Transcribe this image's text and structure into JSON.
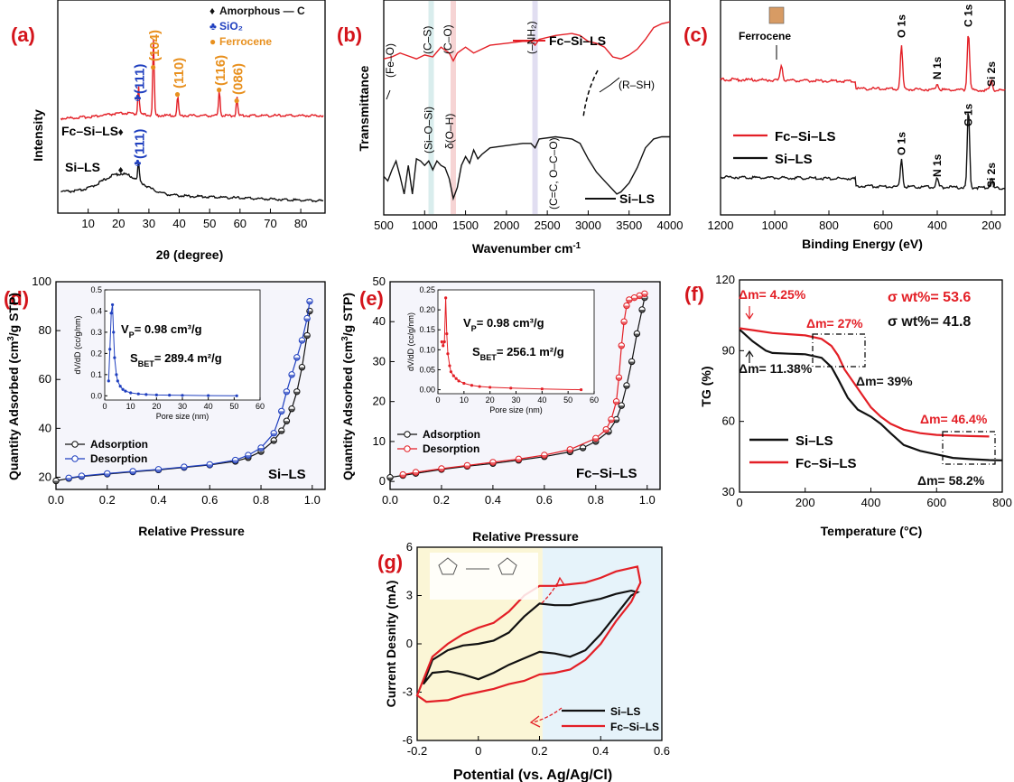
{
  "colors": {
    "red": "#e31f26",
    "black": "#111111",
    "blue": "#1f3fbf",
    "orange": "#e8901e",
    "label": "#d4141b",
    "cvYellow": "#fbf6d6",
    "cvBlue": "#e6f3fa"
  },
  "chart_data": [
    {
      "id": "a",
      "type": "line",
      "panel_label": "(a)",
      "xlabel": "2θ (degree)",
      "ylabel": "Intensity",
      "xlim": [
        0,
        88
      ],
      "xticks": [
        10,
        20,
        30,
        40,
        50,
        60,
        70,
        80
      ],
      "series": [
        {
          "name": "Fc–Si–LS",
          "color": "#e31f26",
          "peaks": [
            [
              26.6,
              0.9
            ],
            [
              31.5,
              2.3
            ],
            [
              39.5,
              0.6
            ],
            [
              53.2,
              0.8
            ],
            [
              59.0,
              0.6
            ]
          ]
        },
        {
          "name": "Si–LS",
          "color": "#111111",
          "broad_max": 21,
          "peaks": [
            [
              26.6,
              1.5
            ]
          ]
        }
      ],
      "series_labels": [
        "Fc–Si–LS",
        "Si–LS"
      ],
      "legend": [
        {
          "symbol": "♦",
          "text": "Amorphous — C",
          "color": "#111111"
        },
        {
          "symbol": "♣",
          "text": "SiO₂",
          "color": "#1f3fbf"
        },
        {
          "symbol": "●",
          "text": "Ferrocene",
          "color": "#e8901e"
        }
      ],
      "annotations": [
        {
          "text": "(111)",
          "x": 26.6,
          "color": "#1f3fbf",
          "series": "Fc–Si–LS"
        },
        {
          "text": "(104)",
          "x": 31.5,
          "color": "#e8901e"
        },
        {
          "text": "(110)",
          "x": 39.5,
          "color": "#e8901e"
        },
        {
          "text": "(116)",
          "x": 53.2,
          "color": "#e8901e"
        },
        {
          "text": "(086)",
          "x": 59.0,
          "color": "#e8901e"
        },
        {
          "text": "(111)",
          "x": 26.6,
          "color": "#1f3fbf",
          "series": "Si–LS"
        }
      ]
    },
    {
      "id": "b",
      "type": "line",
      "panel_label": "(b)",
      "xlabel": "Wavenumber cm⁻¹",
      "ylabel": "Transmittance",
      "xlim": [
        500,
        4000
      ],
      "xticks": [
        500,
        1000,
        1500,
        2000,
        2500,
        3000,
        3500,
        4000
      ],
      "series": [
        {
          "name": "Fc–Si–LS",
          "color": "#e31f26",
          "x": [
            500,
            600,
            700,
            800,
            900,
            1000,
            1100,
            1200,
            1300,
            1350,
            1400,
            1500,
            1600,
            1700,
            1800,
            2000,
            2200,
            2300,
            2350,
            2400,
            2600,
            2800,
            2900,
            3000,
            3100,
            3200,
            3300,
            3400,
            3500,
            3600,
            3700,
            3800,
            3900,
            4000
          ],
          "y": [
            60,
            62,
            66,
            63,
            60,
            64,
            62,
            72,
            66,
            58,
            66,
            72,
            66,
            70,
            74,
            76,
            78,
            78,
            74,
            80,
            84,
            86,
            84,
            78,
            76,
            72,
            62,
            60,
            64,
            70,
            80,
            92,
            96,
            98
          ]
        },
        {
          "name": "Si–LS",
          "color": "#111111",
          "x": [
            500,
            550,
            600,
            650,
            700,
            750,
            800,
            850,
            900,
            950,
            1000,
            1050,
            1100,
            1150,
            1200,
            1250,
            1300,
            1350,
            1400,
            1450,
            1500,
            1550,
            1600,
            1650,
            1700,
            1800,
            2000,
            2200,
            2300,
            2350,
            2400,
            2600,
            2800,
            2900,
            3000,
            3100,
            3200,
            3300,
            3350,
            3400,
            3500,
            3600,
            3700,
            3800,
            3900,
            4000
          ],
          "y": [
            30,
            26,
            36,
            44,
            30,
            14,
            40,
            14,
            46,
            44,
            40,
            44,
            36,
            44,
            40,
            38,
            28,
            10,
            20,
            40,
            48,
            42,
            54,
            46,
            50,
            56,
            58,
            60,
            60,
            56,
            64,
            66,
            64,
            60,
            46,
            34,
            26,
            18,
            14,
            16,
            24,
            38,
            56,
            64,
            66,
            66
          ]
        }
      ],
      "annotations": [
        "(Fe–O)",
        "(C–S)",
        "(C–O)",
        "(–NH₂)",
        "(Si–O–Si)",
        "δ(O–H)",
        "(C=C, O–C–O)",
        "(R–SH)"
      ]
    },
    {
      "id": "c",
      "type": "line",
      "panel_label": "(c)",
      "xlabel": "Binding Energy (eV)",
      "ylabel": "",
      "xlim": [
        1200,
        150
      ],
      "xticks": [
        1200,
        1000,
        800,
        600,
        400,
        200
      ],
      "series": [
        {
          "name": "Fc–Si–LS",
          "color": "#e31f26",
          "peaks": [
            [
              975,
              14
            ],
            [
              532,
              40
            ],
            [
              400,
              6
            ],
            [
              285,
              54
            ],
            [
              200,
              10
            ]
          ]
        },
        {
          "name": "Si–LS",
          "color": "#111111",
          "peaks": [
            [
              532,
              26
            ],
            [
              400,
              8
            ],
            [
              285,
              72
            ],
            [
              200,
              10
            ]
          ]
        }
      ],
      "annotations": [
        "Ferrocene",
        "O 1s",
        "N 1s",
        "C 1s",
        "Si 2s",
        "O 1s",
        "N 1s",
        "C 1s",
        "Si 2s"
      ]
    },
    {
      "id": "d",
      "type": "line",
      "panel_label": "(d)",
      "xlabel": "Relative Pressure",
      "ylabel": "Quantity Adsorbed (cm³/g STP)",
      "xlim": [
        0.0,
        1.05
      ],
      "ylim": [
        15,
        100
      ],
      "xticks": [
        0.0,
        0.2,
        0.4,
        0.6,
        0.8,
        1.0
      ],
      "yticks": [
        20,
        40,
        60,
        80,
        100
      ],
      "series": [
        {
          "name": "Adsorption",
          "color": "#111111",
          "x": [
            0.0,
            0.05,
            0.1,
            0.2,
            0.3,
            0.4,
            0.5,
            0.6,
            0.7,
            0.75,
            0.8,
            0.85,
            0.88,
            0.9,
            0.92,
            0.94,
            0.96,
            0.98,
            0.99
          ],
          "y": [
            18.5,
            19.5,
            20.3,
            21.3,
            22.2,
            23,
            24,
            25,
            26.5,
            28,
            30.5,
            35,
            39,
            43,
            48,
            55,
            65,
            78,
            88
          ]
        },
        {
          "name": "Desorption",
          "color": "#1f3fbf",
          "x": [
            0.99,
            0.98,
            0.96,
            0.94,
            0.92,
            0.9,
            0.88,
            0.85,
            0.8,
            0.75,
            0.7,
            0.6,
            0.5,
            0.4,
            0.3,
            0.2,
            0.1,
            0.05
          ],
          "y": [
            92,
            85,
            76,
            69,
            62,
            55,
            47,
            38,
            32,
            29,
            27,
            25.2,
            24.2,
            23.2,
            22.4,
            21.5,
            20.5,
            19.7
          ]
        }
      ],
      "legend": [
        "Adsorption",
        "Desorption"
      ],
      "sample_label": "Si–LS",
      "inset": {
        "xlabel": "Pore size (nm)",
        "ylabel": "dV/dD (cc/g/nm)",
        "xlim": [
          0,
          60
        ],
        "ylim": [
          -0.02,
          0.5
        ],
        "xticks": [
          0,
          10,
          20,
          30,
          40,
          50,
          60
        ],
        "yticks": [
          0.0,
          0.1,
          0.2,
          0.3,
          0.4,
          0.5
        ],
        "x": [
          1.5,
          2,
          2.5,
          3,
          3.4,
          3.8,
          4.5,
          5,
          6,
          7,
          8,
          10,
          13,
          16,
          20,
          25,
          30,
          40,
          51
        ],
        "y": [
          0.07,
          0.22,
          0.39,
          0.43,
          0.3,
          0.18,
          0.1,
          0.07,
          0.045,
          0.03,
          0.022,
          0.014,
          0.009,
          0.006,
          0.004,
          0.003,
          0.002,
          0.001,
          0.0
        ],
        "color": "#1f3fbf"
      },
      "texts": [
        "VP= 0.98 cm³/g",
        "SBET= 289.4 m²/g"
      ]
    },
    {
      "id": "e",
      "type": "line",
      "panel_label": "(e)",
      "xlabel": "Relative Pressure",
      "ylabel": "Quantity Adsorbed (cm³/g STP)",
      "xlim": [
        0.0,
        1.05
      ],
      "ylim": [
        -2,
        50
      ],
      "xticks": [
        0.0,
        0.2,
        0.4,
        0.6,
        0.8,
        1.0
      ],
      "yticks": [
        0,
        10,
        20,
        30,
        40,
        50
      ],
      "series": [
        {
          "name": "Adsorption",
          "color": "#111111",
          "x": [
            0.0,
            0.05,
            0.1,
            0.2,
            0.3,
            0.4,
            0.5,
            0.6,
            0.7,
            0.75,
            0.8,
            0.85,
            0.88,
            0.9,
            0.92,
            0.94,
            0.96,
            0.98,
            0.99
          ],
          "y": [
            1,
            1.5,
            2,
            3,
            3.8,
            4.5,
            5.3,
            6.2,
            7.4,
            8.4,
            10,
            12.5,
            15.5,
            19,
            24,
            30,
            37,
            43,
            46
          ]
        },
        {
          "name": "Desorption",
          "color": "#e31f26",
          "x": [
            0.99,
            0.97,
            0.95,
            0.93,
            0.92,
            0.91,
            0.9,
            0.89,
            0.88,
            0.86,
            0.84,
            0.8,
            0.7,
            0.6,
            0.5,
            0.4,
            0.3,
            0.2,
            0.1,
            0.05
          ],
          "y": [
            47,
            46.5,
            46,
            45.5,
            44,
            40,
            34,
            26,
            20,
            15.5,
            13,
            10.8,
            8,
            6.6,
            5.6,
            4.8,
            4,
            3.2,
            2.3,
            1.7
          ]
        }
      ],
      "legend": [
        "Adsorption",
        "Desorption"
      ],
      "sample_label": "Fc–Si–LS",
      "inset": {
        "xlabel": "Pore size (nm)",
        "ylabel": "dV/dD (cc/g/nm)",
        "xlim": [
          0,
          60
        ],
        "ylim": [
          -0.01,
          0.25
        ],
        "xticks": [
          0,
          10,
          20,
          30,
          40,
          50,
          60
        ],
        "yticks": [
          0.0,
          0.05,
          0.1,
          0.15,
          0.2,
          0.25
        ],
        "x": [
          1.5,
          2,
          2.5,
          3,
          3.4,
          3.8,
          4.5,
          5,
          6,
          7,
          8,
          10,
          13,
          16,
          20,
          28,
          40,
          55
        ],
        "y": [
          0.12,
          0.11,
          0.12,
          0.23,
          0.14,
          0.09,
          0.06,
          0.045,
          0.035,
          0.028,
          0.022,
          0.016,
          0.011,
          0.008,
          0.006,
          0.004,
          0.002,
          0.0
        ],
        "color": "#e31f26"
      },
      "texts": [
        "VP= 0.98 cm³/g",
        "SBET= 256.1 m²/g"
      ]
    },
    {
      "id": "f",
      "type": "line",
      "panel_label": "(f)",
      "xlabel": "Temperature (°C)",
      "ylabel": "TG (%)",
      "xlim": [
        0,
        800
      ],
      "ylim": [
        30,
        120
      ],
      "xticks": [
        0,
        200,
        400,
        600,
        800
      ],
      "yticks": [
        30,
        60,
        90,
        120
      ],
      "series": [
        {
          "name": "Si–LS",
          "color": "#111111",
          "x": [
            0,
            40,
            80,
            100,
            150,
            200,
            250,
            280,
            300,
            330,
            360,
            400,
            430,
            460,
            500,
            550,
            600,
            650,
            700,
            760,
            800
          ],
          "y": [
            99,
            94,
            90,
            89,
            88.7,
            88.5,
            87,
            83,
            78,
            70,
            65,
            62,
            59,
            55,
            50,
            47.5,
            46,
            44.5,
            44,
            43.6,
            43.5
          ]
        },
        {
          "name": "Fc–Si–LS",
          "color": "#e31f26",
          "x": [
            0,
            50,
            100,
            150,
            200,
            250,
            280,
            300,
            320,
            350,
            380,
            400,
            430,
            460,
            500,
            550,
            600,
            650,
            700,
            760
          ],
          "y": [
            99.5,
            98.5,
            97.5,
            97,
            96.5,
            95,
            92,
            88,
            82,
            76,
            70,
            66,
            62,
            59,
            56.5,
            55,
            54.3,
            54,
            53.8,
            53.6
          ]
        }
      ],
      "legend": [
        "Si–LS",
        "Fc–Si–LS"
      ],
      "annotations": [
        {
          "text": "Δm= 4.25%",
          "color": "#e31f26"
        },
        {
          "text": "Δm= 27%",
          "color": "#e31f26"
        },
        {
          "text": "Δm= 11.38%",
          "color": "#111111"
        },
        {
          "text": "Δm= 39%",
          "color": "#111111"
        },
        {
          "text": "Δm= 46.4%",
          "color": "#e31f26"
        },
        {
          "text": "Δm= 58.2%",
          "color": "#111111"
        },
        {
          "text": "σ wt%= 53.6",
          "color": "#e31f26"
        },
        {
          "text": "σ wt%= 41.8",
          "color": "#111111"
        }
      ]
    },
    {
      "id": "g",
      "type": "line",
      "panel_label": "(g)",
      "xlabel": "Potential (vs. Ag/Ag/Cl)",
      "ylabel": "Current Desnity (mA)",
      "xlim": [
        -0.2,
        0.6
      ],
      "ylim": [
        -6,
        6
      ],
      "xticks": [
        -0.2,
        0,
        0.2,
        0.4,
        0.6
      ],
      "yticks": [
        -6,
        -3,
        0,
        3,
        6
      ],
      "series": [
        {
          "name": "Si–LS",
          "color": "#111111",
          "x": [
            -0.18,
            -0.15,
            -0.1,
            -0.05,
            0.0,
            0.05,
            0.1,
            0.15,
            0.2,
            0.25,
            0.3,
            0.35,
            0.4,
            0.45,
            0.5,
            0.52,
            0.5,
            0.45,
            0.4,
            0.35,
            0.3,
            0.25,
            0.2,
            0.15,
            0.1,
            0.05,
            0.0,
            -0.05,
            -0.1,
            -0.15,
            -0.18
          ],
          "y": [
            -2.5,
            -1.8,
            -1.7,
            -1.9,
            -2.2,
            -1.8,
            -1.3,
            -0.9,
            -0.5,
            -0.6,
            -0.8,
            -0.4,
            0.6,
            1.8,
            3.0,
            3.2,
            3.3,
            3.1,
            2.8,
            2.6,
            2.4,
            2.4,
            2.5,
            1.7,
            0.7,
            0.2,
            0.0,
            -0.1,
            -0.4,
            -1.0,
            -2.5
          ]
        },
        {
          "name": "Fc–Si–LS",
          "color": "#e31f26",
          "x": [
            -0.2,
            -0.17,
            -0.1,
            -0.05,
            0.0,
            0.05,
            0.1,
            0.15,
            0.2,
            0.25,
            0.3,
            0.35,
            0.4,
            0.45,
            0.5,
            0.53,
            0.52,
            0.45,
            0.4,
            0.35,
            0.3,
            0.25,
            0.2,
            0.15,
            0.1,
            0.05,
            0.0,
            -0.05,
            -0.1,
            -0.15,
            -0.2
          ],
          "y": [
            -3.2,
            -3.6,
            -3.5,
            -3.2,
            -3.0,
            -2.8,
            -2.5,
            -2.3,
            -1.9,
            -1.8,
            -1.6,
            -1.0,
            0.0,
            1.4,
            2.6,
            3.8,
            4.8,
            4.5,
            4.1,
            3.8,
            3.7,
            3.6,
            3.6,
            3.0,
            2.0,
            1.3,
            1.0,
            0.6,
            0.0,
            -0.8,
            -3.2
          ]
        }
      ],
      "legend": [
        "Si–LS",
        "Fc–Si–LS"
      ],
      "regions": [
        {
          "from": -0.2,
          "to": 0.21,
          "color": "#fbf6d6"
        },
        {
          "from": 0.21,
          "to": 0.6,
          "color": "#e6f3fa"
        }
      ]
    }
  ]
}
